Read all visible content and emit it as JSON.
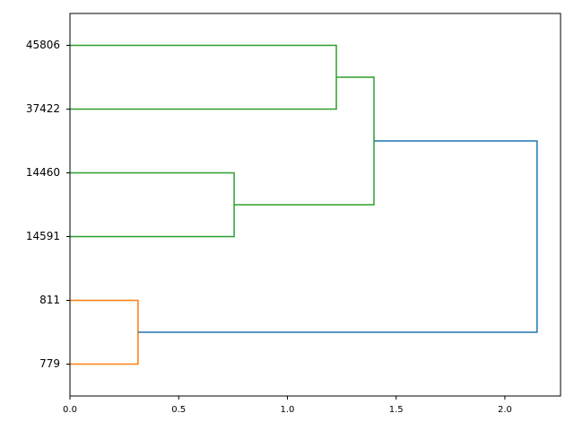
{
  "chart_data": {
    "type": "dendrogram",
    "categories": [
      "779",
      "811",
      "14591",
      "14460",
      "37422",
      "45806"
    ],
    "merges": [
      {
        "children": [
          0,
          1
        ],
        "height": 0.313,
        "color": "#ff7f0e"
      },
      {
        "children": [
          2,
          3
        ],
        "height": 0.755,
        "color": "#2ca02c"
      },
      {
        "children": [
          4,
          5
        ],
        "height": 1.225,
        "color": "#2ca02c"
      },
      {
        "children": [
          7,
          8
        ],
        "height": 1.398,
        "color": "#2ca02c"
      },
      {
        "children": [
          6,
          9
        ],
        "height": 2.148,
        "color": "#1f77b4"
      }
    ],
    "xlim": [
      0,
      2.256
    ],
    "xticks": [
      {
        "value": 0,
        "label": "0.0"
      },
      {
        "value": 0.5,
        "label": "0.5"
      },
      {
        "value": 1,
        "label": "1.0"
      },
      {
        "value": 1.5,
        "label": "1.5"
      },
      {
        "value": 2,
        "label": "2.0"
      }
    ]
  }
}
